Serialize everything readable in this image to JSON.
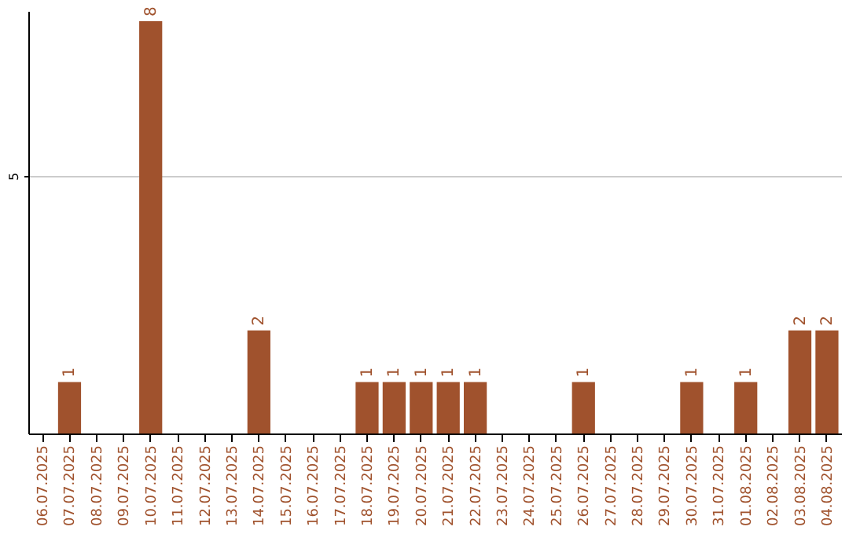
{
  "chart_data": {
    "type": "bar",
    "categories": [
      "06.07.2025",
      "07.07.2025",
      "08.07.2025",
      "09.07.2025",
      "10.07.2025",
      "11.07.2025",
      "12.07.2025",
      "13.07.2025",
      "14.07.2025",
      "15.07.2025",
      "16.07.2025",
      "17.07.2025",
      "18.07.2025",
      "19.07.2025",
      "20.07.2025",
      "21.07.2025",
      "22.07.2025",
      "23.07.2025",
      "24.07.2025",
      "25.07.2025",
      "26.07.2025",
      "27.07.2025",
      "28.07.2025",
      "29.07.2025",
      "30.07.2025",
      "31.07.2025",
      "01.08.2025",
      "02.08.2025",
      "03.08.2025",
      "04.08.2025"
    ],
    "values": [
      0,
      1,
      0,
      0,
      8,
      0,
      0,
      0,
      2,
      0,
      0,
      0,
      1,
      1,
      1,
      1,
      1,
      0,
      0,
      0,
      1,
      0,
      0,
      0,
      1,
      0,
      1,
      0,
      2,
      2
    ],
    "value_labels": [
      null,
      "1",
      null,
      null,
      "8",
      null,
      null,
      null,
      "2",
      null,
      null,
      null,
      "1",
      "1",
      "1",
      "1",
      "1",
      null,
      null,
      null,
      "1",
      null,
      null,
      null,
      "1",
      null,
      "1",
      null,
      "2",
      "2"
    ],
    "color": "#a0522d",
    "ylim": [
      0,
      8.2
    ],
    "yticks": [
      5
    ],
    "grid": "y"
  }
}
